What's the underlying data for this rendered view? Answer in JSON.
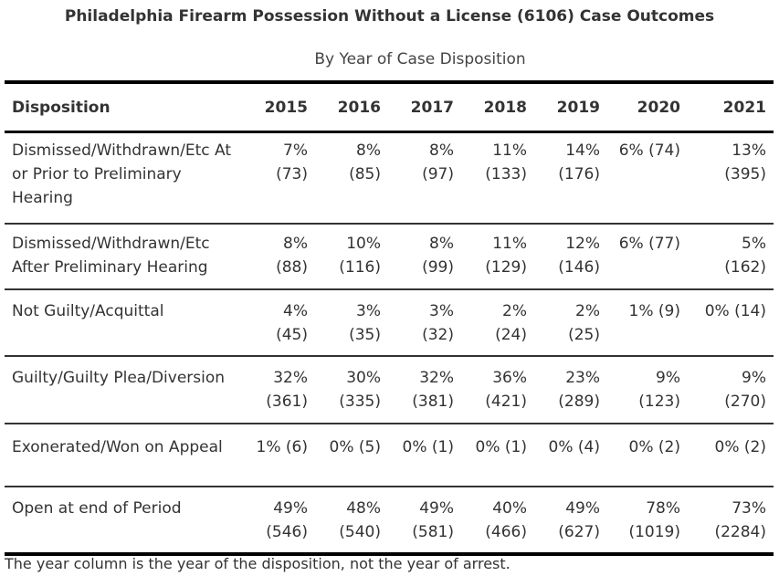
{
  "title": "Philadelphia Firearm Possession Without a License (6106) Case Outcomes",
  "subtitle": "By Year of Case Disposition",
  "header": {
    "disposition": "Disposition",
    "years": [
      "2015",
      "2016",
      "2017",
      "2018",
      "2019",
      "2020",
      "2021"
    ]
  },
  "rows": [
    {
      "label": "Dismissed/Withdrawn/Etc At or Prior to Preliminary Hearing",
      "cells": [
        "7% (73)",
        "8% (85)",
        "8% (97)",
        "11% (133)",
        "14% (176)",
        "6% (74)",
        "13% (395)"
      ]
    },
    {
      "label": "Dismissed/Withdrawn/Etc After Preliminary Hearing",
      "cells": [
        "8% (88)",
        "10% (116)",
        "8% (99)",
        "11% (129)",
        "12% (146)",
        "6% (77)",
        "5% (162)"
      ]
    },
    {
      "label": "Not Guilty/Acquittal",
      "cells": [
        "4% (45)",
        "3% (35)",
        "3% (32)",
        "2% (24)",
        "2% (25)",
        "1% (9)",
        "0% (14)"
      ]
    },
    {
      "label": "Guilty/Guilty Plea/Diversion",
      "cells": [
        "32% (361)",
        "30% (335)",
        "32% (381)",
        "36% (421)",
        "23% (289)",
        "9% (123)",
        "9% (270)"
      ]
    },
    {
      "label": "Exonerated/Won on Appeal",
      "cells": [
        "1% (6)",
        "0% (5)",
        "0% (1)",
        "0% (1)",
        "0% (4)",
        "0% (2)",
        "0% (2)"
      ]
    },
    {
      "label": "Open at end of Period",
      "cells": [
        "49% (546)",
        "48% (540)",
        "49% (581)",
        "40% (466)",
        "49% (627)",
        "78% (1019)",
        "73% (2284)"
      ]
    }
  ],
  "footnote": "The year column is the year of the disposition, not the year of arrest."
}
